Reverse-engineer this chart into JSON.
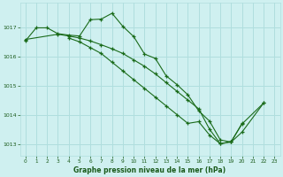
{
  "title": "Graphe pression niveau de la mer (hPa)",
  "background_color": "#cff0f0",
  "grid_color": "#b0dede",
  "line_color": "#1a6b1a",
  "tick_color": "#1a5a1a",
  "xlim": [
    -0.5,
    23.5
  ],
  "ylim": [
    1012.6,
    1017.85
  ],
  "xticks": [
    0,
    1,
    2,
    3,
    4,
    5,
    6,
    7,
    8,
    9,
    10,
    11,
    12,
    13,
    14,
    15,
    16,
    17,
    18,
    19,
    20,
    21,
    22,
    23
  ],
  "yticks": [
    1013,
    1014,
    1015,
    1016,
    1017
  ],
  "line1_x": [
    0,
    1,
    2,
    3,
    4,
    5,
    6,
    7,
    8,
    9,
    10,
    11,
    12,
    13,
    14,
    15,
    16,
    17,
    18,
    19,
    20
  ],
  "line1_y": [
    1016.55,
    1017.0,
    1017.0,
    1016.8,
    1016.75,
    1016.72,
    1017.28,
    1017.3,
    1017.5,
    1017.05,
    1016.7,
    1016.1,
    1015.95,
    1015.35,
    1015.05,
    1014.7,
    1014.15,
    1013.8,
    1013.15,
    1013.08,
    1013.72
  ],
  "line2_x": [
    0,
    3,
    4,
    5,
    6,
    7,
    8,
    9,
    10,
    11,
    12,
    13,
    14,
    15,
    16,
    17,
    18,
    19,
    20,
    22
  ],
  "line2_y": [
    1016.6,
    1016.78,
    1016.72,
    1016.65,
    1016.55,
    1016.42,
    1016.28,
    1016.12,
    1015.9,
    1015.68,
    1015.42,
    1015.12,
    1014.82,
    1014.52,
    1014.22,
    1013.52,
    1013.02,
    1013.1,
    1013.7,
    1014.42
  ],
  "line3_x": [
    4,
    5,
    6,
    7,
    8,
    9,
    10,
    11,
    12,
    13,
    14,
    15,
    16,
    17,
    18,
    19,
    20,
    22
  ],
  "line3_y": [
    1016.65,
    1016.52,
    1016.32,
    1016.12,
    1015.82,
    1015.52,
    1015.22,
    1014.92,
    1014.62,
    1014.32,
    1014.02,
    1013.72,
    1013.78,
    1013.32,
    1013.02,
    1013.08,
    1013.42,
    1014.42
  ]
}
